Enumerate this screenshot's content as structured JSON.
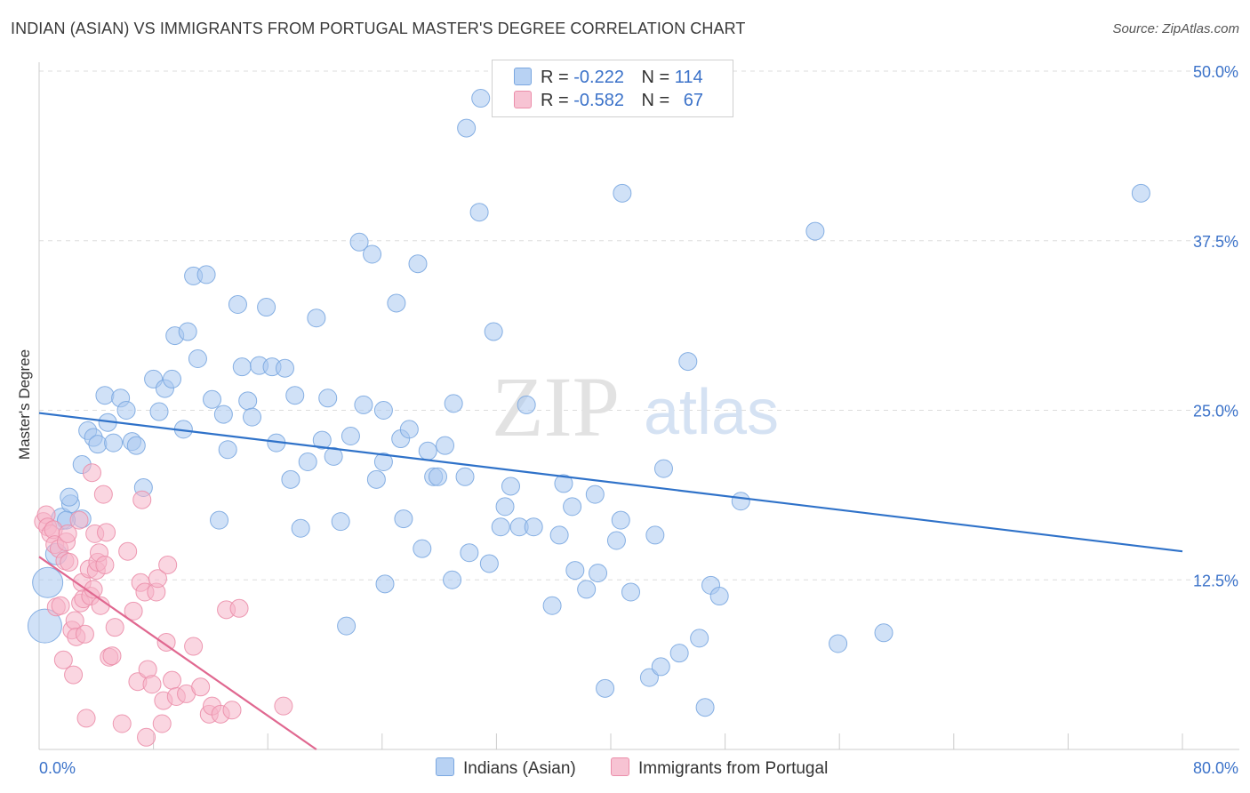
{
  "title": "INDIAN (ASIAN) VS IMMIGRANTS FROM PORTUGAL MASTER'S DEGREE CORRELATION CHART",
  "source": "Source: ZipAtlas.com",
  "watermark": {
    "zip": "ZIP",
    "atlas": "atlas"
  },
  "legend": {
    "r_label": "R =",
    "n_label": "N =",
    "series": [
      {
        "r": "-0.222",
        "n": "114",
        "fill": "#b8d2f3",
        "stroke": "#7aa7e0"
      },
      {
        "r": "-0.582",
        "n": "67",
        "fill": "#f7c3d3",
        "stroke": "#eb8eaa"
      }
    ]
  },
  "colors": {
    "blue_point": "#a9c8f0",
    "blue_line": "#2f72c9",
    "pink_point": "#f5b4c8",
    "pink_line": "#e06890",
    "tick_label": "#3b72c9",
    "grid": "#dddddd"
  },
  "chart_data": {
    "type": "scatter",
    "title": "INDIAN (ASIAN) VS IMMIGRANTS FROM PORTUGAL MASTER'S DEGREE CORRELATION CHART",
    "xlabel": "",
    "ylabel": "Master's Degree",
    "xlim": [
      0,
      80
    ],
    "ylim": [
      0,
      50
    ],
    "x_tick_labels": [
      "0.0%",
      "80.0%"
    ],
    "y_ticks": [
      12.5,
      25.0,
      37.5,
      50.0
    ],
    "y_tick_labels": [
      "12.5%",
      "25.0%",
      "37.5%",
      "50.0%"
    ],
    "grid": true,
    "legend_position": "top-center",
    "series": [
      {
        "name": "Indians (Asian)",
        "color": "#a9c8f0",
        "trendline": {
          "x": [
            0,
            80
          ],
          "y": [
            24.8,
            14.6
          ]
        },
        "points": [
          [
            0.4,
            9.1
          ],
          [
            0.6,
            12.3
          ],
          [
            1.2,
            14.4
          ],
          [
            1.6,
            17.0
          ],
          [
            2.2,
            18.1
          ],
          [
            2.1,
            18.6
          ],
          [
            3.0,
            21.0
          ],
          [
            3.4,
            23.5
          ],
          [
            3.8,
            23.0
          ],
          [
            4.1,
            22.5
          ],
          [
            4.6,
            26.1
          ],
          [
            4.8,
            24.1
          ],
          [
            5.2,
            22.6
          ],
          [
            5.7,
            25.9
          ],
          [
            6.1,
            25.0
          ],
          [
            6.5,
            22.7
          ],
          [
            6.8,
            22.4
          ],
          [
            7.3,
            19.3
          ],
          [
            8.0,
            27.3
          ],
          [
            8.4,
            24.9
          ],
          [
            8.8,
            26.6
          ],
          [
            9.3,
            27.3
          ],
          [
            9.5,
            30.5
          ],
          [
            10.1,
            23.6
          ],
          [
            10.4,
            30.8
          ],
          [
            10.8,
            34.9
          ],
          [
            11.1,
            28.8
          ],
          [
            11.7,
            35.0
          ],
          [
            12.1,
            25.8
          ],
          [
            12.6,
            16.9
          ],
          [
            12.9,
            24.7
          ],
          [
            13.2,
            22.1
          ],
          [
            13.9,
            32.8
          ],
          [
            14.2,
            28.2
          ],
          [
            14.6,
            25.7
          ],
          [
            14.9,
            24.5
          ],
          [
            15.4,
            28.3
          ],
          [
            15.9,
            32.6
          ],
          [
            16.3,
            28.2
          ],
          [
            16.6,
            22.6
          ],
          [
            17.2,
            28.1
          ],
          [
            17.6,
            19.9
          ],
          [
            17.9,
            26.1
          ],
          [
            18.3,
            16.3
          ],
          [
            18.8,
            21.2
          ],
          [
            19.4,
            31.8
          ],
          [
            19.8,
            22.8
          ],
          [
            20.2,
            25.9
          ],
          [
            20.6,
            21.6
          ],
          [
            21.1,
            16.8
          ],
          [
            21.5,
            9.1
          ],
          [
            21.8,
            23.1
          ],
          [
            22.4,
            37.4
          ],
          [
            22.7,
            25.4
          ],
          [
            23.3,
            36.5
          ],
          [
            23.6,
            19.9
          ],
          [
            24.1,
            21.2
          ],
          [
            24.2,
            12.2
          ],
          [
            24.1,
            25.0
          ],
          [
            25.0,
            32.9
          ],
          [
            25.3,
            22.9
          ],
          [
            25.5,
            17.0
          ],
          [
            25.9,
            23.6
          ],
          [
            26.5,
            35.8
          ],
          [
            26.8,
            14.8
          ],
          [
            27.2,
            22.0
          ],
          [
            27.6,
            20.1
          ],
          [
            27.9,
            20.1
          ],
          [
            28.4,
            22.4
          ],
          [
            28.9,
            12.5
          ],
          [
            29.0,
            25.5
          ],
          [
            29.8,
            20.1
          ],
          [
            30.1,
            14.5
          ],
          [
            29.9,
            45.8
          ],
          [
            30.8,
            39.6
          ],
          [
            30.9,
            48.0
          ],
          [
            31.5,
            13.7
          ],
          [
            31.8,
            30.8
          ],
          [
            32.3,
            16.4
          ],
          [
            32.6,
            17.9
          ],
          [
            33.0,
            19.4
          ],
          [
            33.6,
            16.4
          ],
          [
            34.1,
            25.4
          ],
          [
            34.6,
            16.4
          ],
          [
            35.9,
            10.6
          ],
          [
            36.4,
            15.8
          ],
          [
            36.7,
            19.6
          ],
          [
            37.3,
            17.9
          ],
          [
            37.5,
            13.2
          ],
          [
            38.3,
            11.8
          ],
          [
            38.9,
            18.8
          ],
          [
            39.1,
            13.0
          ],
          [
            39.6,
            4.5
          ],
          [
            40.4,
            15.4
          ],
          [
            40.7,
            16.9
          ],
          [
            40.8,
            41.0
          ],
          [
            41.4,
            11.6
          ],
          [
            42.7,
            5.3
          ],
          [
            43.1,
            15.8
          ],
          [
            43.5,
            6.1
          ],
          [
            43.7,
            20.7
          ],
          [
            44.8,
            7.1
          ],
          [
            45.4,
            28.6
          ],
          [
            46.2,
            8.2
          ],
          [
            46.6,
            3.1
          ],
          [
            47.0,
            12.1
          ],
          [
            47.6,
            11.3
          ],
          [
            49.1,
            18.3
          ],
          [
            54.3,
            38.2
          ],
          [
            55.9,
            7.8
          ],
          [
            59.1,
            8.6
          ],
          [
            77.1,
            41.0
          ],
          [
            3.0,
            17.0
          ],
          [
            1.9,
            16.9
          ]
        ],
        "sizes": [
          19,
          17,
          12,
          12,
          10,
          10,
          10,
          10,
          10,
          10,
          10,
          10,
          10,
          10,
          10,
          10,
          10,
          10,
          10,
          10,
          10,
          10,
          10,
          10,
          10,
          10,
          10,
          10,
          10,
          10,
          10,
          10,
          10,
          10,
          10,
          10,
          10,
          10,
          10,
          10,
          10,
          10,
          10,
          10,
          10,
          10,
          10,
          10,
          10,
          10,
          10,
          10,
          10,
          10,
          10,
          10,
          10,
          10,
          10,
          10,
          10,
          10,
          10,
          10,
          10,
          10,
          10,
          10,
          10,
          10,
          10,
          10,
          10,
          10,
          10,
          10,
          10,
          10,
          10,
          10,
          10,
          10,
          10,
          10,
          10,
          10,
          10,
          10,
          10,
          10,
          10,
          10,
          10,
          10,
          10,
          10,
          10,
          10,
          10,
          10,
          10,
          10,
          10,
          10,
          10,
          10,
          10,
          10,
          10,
          10,
          10,
          10,
          10,
          10
        ]
      },
      {
        "name": "Immigrants from Portugal",
        "color": "#f5b4c8",
        "trendline": {
          "x": [
            0,
            19.4
          ],
          "y": [
            14.2,
            0
          ]
        },
        "points": [
          [
            0.3,
            16.8
          ],
          [
            0.5,
            17.3
          ],
          [
            0.6,
            16.4
          ],
          [
            0.8,
            15.9
          ],
          [
            1.0,
            16.2
          ],
          [
            1.1,
            15.1
          ],
          [
            1.2,
            10.5
          ],
          [
            1.4,
            14.8
          ],
          [
            1.5,
            10.6
          ],
          [
            1.7,
            6.6
          ],
          [
            1.8,
            13.9
          ],
          [
            1.9,
            15.3
          ],
          [
            2.0,
            15.9
          ],
          [
            2.1,
            13.8
          ],
          [
            2.3,
            8.8
          ],
          [
            2.4,
            5.5
          ],
          [
            2.5,
            9.5
          ],
          [
            2.6,
            8.3
          ],
          [
            2.8,
            16.9
          ],
          [
            2.9,
            10.8
          ],
          [
            3.0,
            12.3
          ],
          [
            3.1,
            11.1
          ],
          [
            3.2,
            8.5
          ],
          [
            3.3,
            2.3
          ],
          [
            3.5,
            13.3
          ],
          [
            3.6,
            11.3
          ],
          [
            3.8,
            11.8
          ],
          [
            3.9,
            15.9
          ],
          [
            4.0,
            13.2
          ],
          [
            4.1,
            13.8
          ],
          [
            4.2,
            14.5
          ],
          [
            4.3,
            10.6
          ],
          [
            4.6,
            13.6
          ],
          [
            4.7,
            16.0
          ],
          [
            4.9,
            6.8
          ],
          [
            5.1,
            6.9
          ],
          [
            5.3,
            9.0
          ],
          [
            5.8,
            1.9
          ],
          [
            6.2,
            14.6
          ],
          [
            6.6,
            10.2
          ],
          [
            6.9,
            5.0
          ],
          [
            7.1,
            12.3
          ],
          [
            7.2,
            18.4
          ],
          [
            7.4,
            11.6
          ],
          [
            7.5,
            0.9
          ],
          [
            7.6,
            5.9
          ],
          [
            7.9,
            4.8
          ],
          [
            8.2,
            11.6
          ],
          [
            8.3,
            12.6
          ],
          [
            8.6,
            1.9
          ],
          [
            8.7,
            3.6
          ],
          [
            8.9,
            7.9
          ],
          [
            9.0,
            13.6
          ],
          [
            9.3,
            5.1
          ],
          [
            9.6,
            3.9
          ],
          [
            10.3,
            4.1
          ],
          [
            10.8,
            7.6
          ],
          [
            11.3,
            4.6
          ],
          [
            11.9,
            2.6
          ],
          [
            12.1,
            3.2
          ],
          [
            12.7,
            2.6
          ],
          [
            13.1,
            10.3
          ],
          [
            13.5,
            2.9
          ],
          [
            14.0,
            10.4
          ],
          [
            17.1,
            3.2
          ],
          [
            3.7,
            20.4
          ],
          [
            4.5,
            18.8
          ]
        ],
        "sizes": [
          10,
          10,
          10,
          10,
          10,
          10,
          10,
          10,
          10,
          10,
          10,
          10,
          10,
          10,
          10,
          10,
          10,
          10,
          10,
          10,
          10,
          10,
          10,
          10,
          10,
          10,
          10,
          10,
          10,
          10,
          10,
          10,
          10,
          10,
          10,
          10,
          10,
          10,
          10,
          10,
          10,
          10,
          10,
          10,
          10,
          10,
          10,
          10,
          10,
          10,
          10,
          10,
          10,
          10,
          10,
          10,
          10,
          10,
          10,
          10,
          10,
          10,
          10,
          10,
          10,
          10,
          10
        ]
      }
    ]
  }
}
